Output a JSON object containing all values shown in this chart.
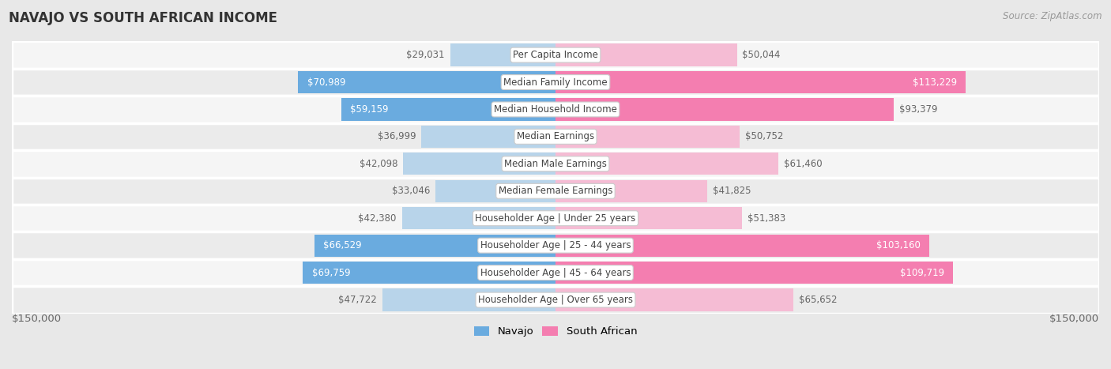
{
  "title": "NAVAJO VS SOUTH AFRICAN INCOME",
  "source": "Source: ZipAtlas.com",
  "categories": [
    "Per Capita Income",
    "Median Family Income",
    "Median Household Income",
    "Median Earnings",
    "Median Male Earnings",
    "Median Female Earnings",
    "Householder Age | Under 25 years",
    "Householder Age | 25 - 44 years",
    "Householder Age | 45 - 64 years",
    "Householder Age | Over 65 years"
  ],
  "navajo_values": [
    29031,
    70989,
    59159,
    36999,
    42098,
    33046,
    42380,
    66529,
    69759,
    47722
  ],
  "southafrican_values": [
    50044,
    113229,
    93379,
    50752,
    61460,
    41825,
    51383,
    103160,
    109719,
    65652
  ],
  "navajo_labels": [
    "$29,031",
    "$70,989",
    "$59,159",
    "$36,999",
    "$42,098",
    "$33,046",
    "$42,380",
    "$66,529",
    "$69,759",
    "$47,722"
  ],
  "southafrican_labels": [
    "$50,044",
    "$113,229",
    "$93,379",
    "$50,752",
    "$61,460",
    "$41,825",
    "$51,383",
    "$103,160",
    "$109,719",
    "$65,652"
  ],
  "navajo_color_strong": "#6aabdf",
  "navajo_color_light": "#b8d4ea",
  "southafrican_color_strong": "#f47eb0",
  "southafrican_color_light": "#f5bcd4",
  "max_value": 150000,
  "legend_navajo": "Navajo",
  "legend_southafrican": "South African",
  "axis_label_left": "$150,000",
  "axis_label_right": "$150,000",
  "bg_color": "#e8e8e8",
  "row_bg_even": "#f5f5f5",
  "row_bg_odd": "#ebebeb",
  "title_fontsize": 12,
  "source_fontsize": 8.5,
  "bar_label_fontsize": 8.5,
  "category_fontsize": 8.5,
  "navajo_strong_threshold": 55000,
  "sa_strong_threshold": 80000,
  "nav_inside_threshold": 115000,
  "sa_inside_threshold": 100000
}
